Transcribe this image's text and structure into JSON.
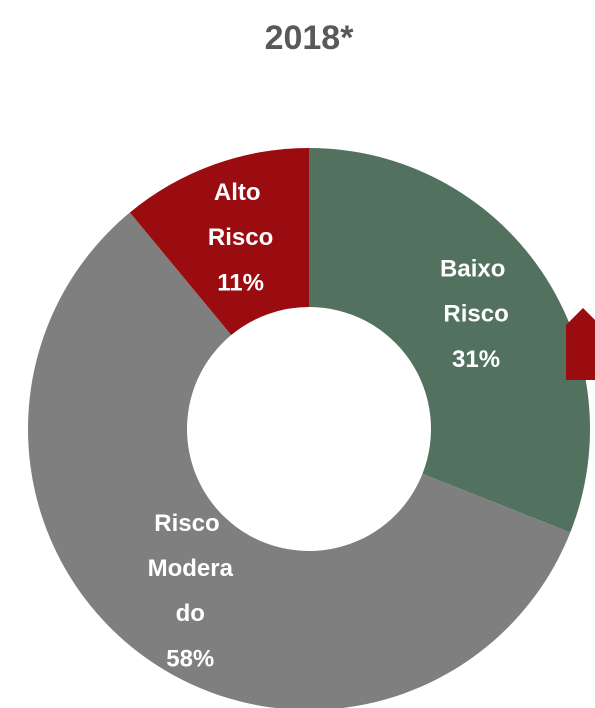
{
  "chart_data": {
    "type": "donut",
    "title": "2018*",
    "categories": [
      "Baixo Risco",
      "Risco Moderado",
      "Alto Risco"
    ],
    "values": [
      31,
      58,
      11
    ],
    "value_labels": [
      "31%",
      "58%",
      "11%"
    ],
    "colors": [
      "#52715f",
      "#7f7f7f",
      "#9b0c10"
    ]
  }
}
